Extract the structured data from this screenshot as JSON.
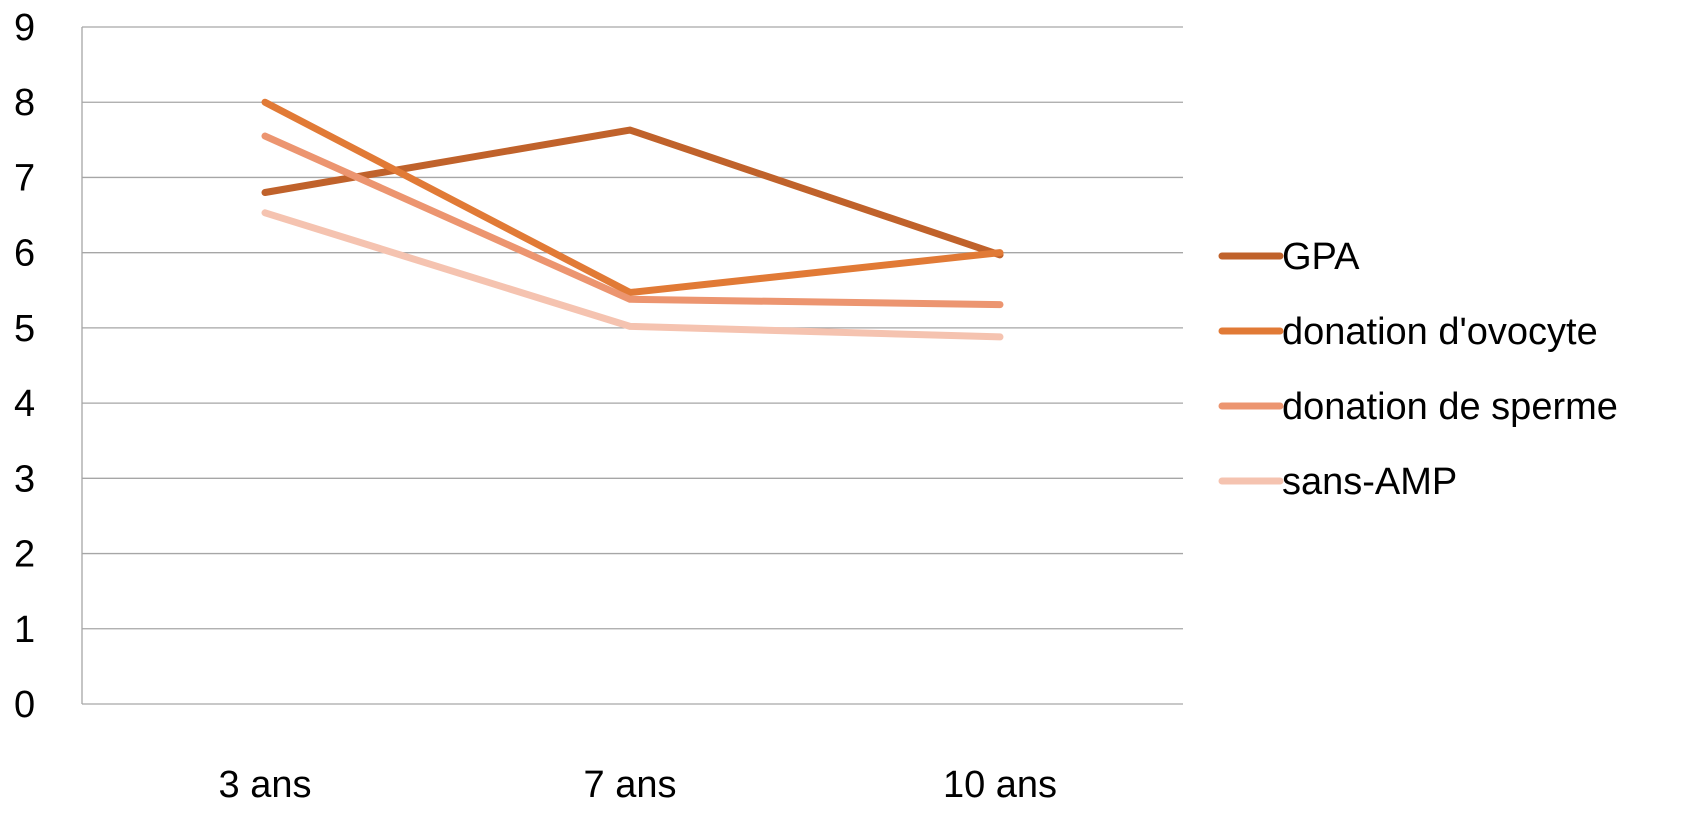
{
  "chart_data": {
    "type": "line",
    "title": "",
    "xlabel": "",
    "ylabel": "",
    "categories": [
      "3 ans",
      "7 ans",
      "10 ans"
    ],
    "ylim": [
      0,
      9
    ],
    "yticks": [
      0,
      1,
      2,
      3,
      4,
      5,
      6,
      7,
      8,
      9
    ],
    "grid": true,
    "legend_position": "right",
    "series": [
      {
        "name": "GPA",
        "values": [
          6.8,
          7.63,
          5.97
        ],
        "color": "#c0622b"
      },
      {
        "name": "donation d'ovocyte",
        "values": [
          8.0,
          5.47,
          6.0
        ],
        "color": "#e17a36"
      },
      {
        "name": "donation de sperme",
        "values": [
          7.55,
          5.38,
          5.31
        ],
        "color": "#ec9570"
      },
      {
        "name": "sans-AMP",
        "values": [
          6.53,
          5.02,
          4.88
        ],
        "color": "#f5c3b0"
      }
    ],
    "gridline_color": "#a6a6a6",
    "axis_color": "#a6a6a6"
  }
}
